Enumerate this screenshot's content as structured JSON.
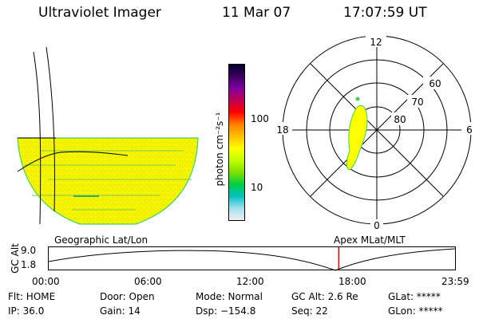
{
  "header": {
    "title": "Ultraviolet Imager",
    "date": "11 Mar 07",
    "time": "17:07:59 UT"
  },
  "colorbar": {
    "label": "photon cm⁻²s⁻¹",
    "ticks": [
      "100",
      "10"
    ],
    "colors": [
      "#000030",
      "#400060",
      "#8000a0",
      "#c00050",
      "#ff0000",
      "#ff8000",
      "#ffc000",
      "#ffff00",
      "#c0ff00",
      "#80e000",
      "#00d040",
      "#00c0c0",
      "#a0e0f0",
      "#f0f0f0"
    ]
  },
  "polar_plot": {
    "mlt_labels": {
      "top": "12",
      "left": "18",
      "right": "6",
      "bottom": "0"
    },
    "lat_labels": [
      "60",
      "70",
      "80"
    ]
  },
  "orbit_plot": {
    "left_title": "Geographic Lat/Lon",
    "right_title": "Apex MLat/MLT",
    "ylabel": "GC Alt",
    "y_ticks": [
      "9.0",
      "1.8"
    ],
    "x_ticks": [
      "00:00",
      "06:00",
      "12:00",
      "18:00",
      "23:59"
    ],
    "marker_time": "17:07:59"
  },
  "status": {
    "row1": [
      "Flt: HOME",
      "Door: Open",
      "Mode: Normal",
      "GC Alt: 2.6 Re",
      "GLat: *****"
    ],
    "row2": [
      "IP: 36.0",
      "Gain: 14",
      "Dsp: −154.8",
      "Seq: 22",
      "GLon: *****"
    ]
  },
  "colors": {
    "image_fill": "#ffff00",
    "image_edge": "#40d060",
    "marker": "#e00000"
  }
}
